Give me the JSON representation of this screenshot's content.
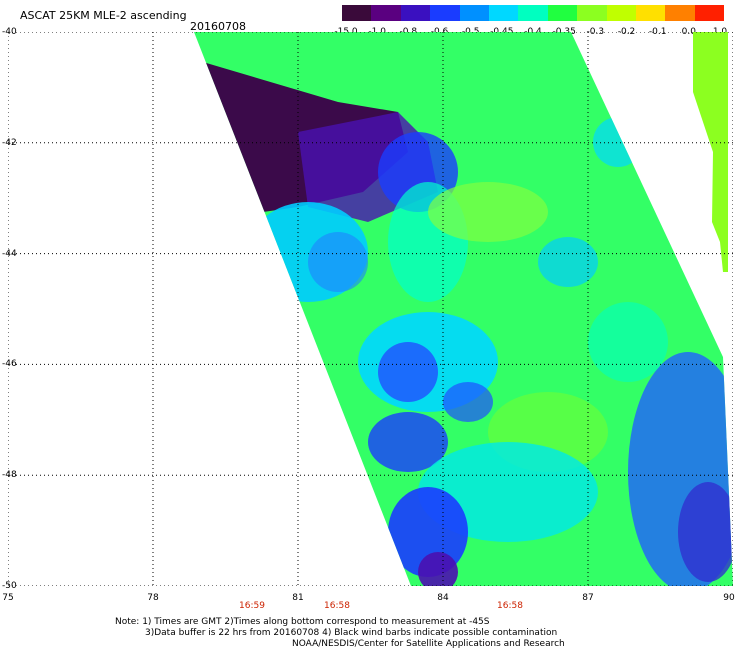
{
  "title": "ASCAT 25KM MLE-2 ascending",
  "date": "20160708",
  "colorbar": {
    "labels": [
      "-15.0",
      "-1.0",
      "-0.8",
      "-0.6",
      "-0.5",
      "-0.45",
      "-0.4",
      "-0.35",
      "-0.3",
      "-0.2",
      "-0.1",
      "0.0",
      "1.0"
    ],
    "colors": [
      "#3a0a3a",
      "#5a0080",
      "#3a10c0",
      "#1a3cff",
      "#0090ff",
      "#00d8ff",
      "#00ffc0",
      "#20ff40",
      "#8cff20",
      "#c0ff00",
      "#ffe000",
      "#ff8000",
      "#ff2000"
    ]
  },
  "x_ticks": [
    "75",
    "78",
    "81",
    "84",
    "87",
    "90"
  ],
  "y_ticks": [
    "-40",
    "-42",
    "-44",
    "-46",
    "-48",
    "-50"
  ],
  "times": [
    "16:59",
    "16:58",
    "16:58"
  ],
  "notes": {
    "line1": "Note: 1) Times are GMT 2)Times along bottom correspond to measurement at -45S",
    "line2": "3)Data buffer is 22 hrs from 20160708 4) Black wind barbs indicate possible contamination",
    "line3": "NOAA/NESDIS/Center for Satellite Applications and Research"
  }
}
